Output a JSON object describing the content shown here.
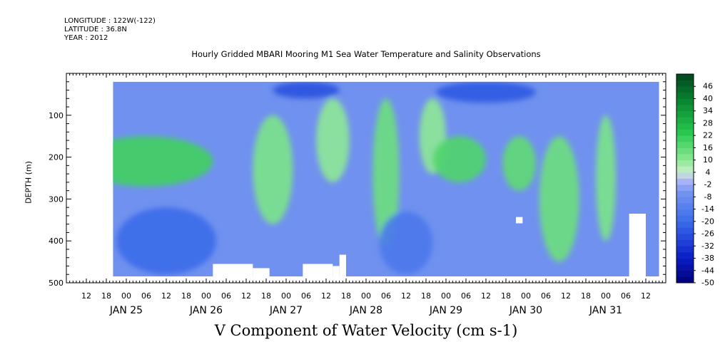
{
  "header": {
    "longitude": "LONGITUDE : 122W(-122)",
    "latitude": "LATITUDE : 36.8N",
    "year": "YEAR : 2012",
    "title": "Hourly Gridded MBARI Mooring M1 Sea Water Temperature and Salinity Observations"
  },
  "chart_data": {
    "type": "heatmap",
    "title": "Hourly Gridded MBARI Mooring M1 Sea Water Temperature and Salinity Observations",
    "xlabel": "V Component of Water Velocity (cm s-1)",
    "ylabel": "DEPTH (m)",
    "x_axis": {
      "hour_ticks": [
        "12",
        "18",
        "00",
        "06",
        "12",
        "18",
        "00",
        "06",
        "12",
        "18",
        "00",
        "06",
        "12",
        "18",
        "00",
        "06",
        "12",
        "18",
        "00",
        "06",
        "12",
        "18",
        "00",
        "06",
        "12",
        "18",
        "00",
        "06",
        "12"
      ],
      "hour_tick_start": "2012-01-24T12:00",
      "hour_tick_step_hours": 6,
      "date_labels": [
        "JAN 25",
        "JAN 26",
        "JAN 27",
        "JAN 28",
        "JAN 29",
        "JAN 30",
        "JAN 31"
      ],
      "range": [
        "2012-01-24T06:00",
        "2012-01-31T18:00"
      ]
    },
    "y_axis": {
      "range": [
        0,
        500
      ],
      "reversed": true,
      "ticks": [
        100,
        200,
        300,
        400,
        500
      ]
    },
    "colorbar": {
      "labels": [
        "46",
        "40",
        "34",
        "28",
        "22",
        "16",
        "10",
        "4",
        "-2",
        "-8",
        "-14",
        "-20",
        "-26",
        "-32",
        "-38",
        "-44",
        "-50"
      ],
      "min": -50,
      "max": 52,
      "step": 3
    },
    "data_extent": {
      "time_start": "2012-01-24T20:00",
      "time_end": "2012-01-31T16:00",
      "depth_top": 20,
      "depth_bottom": 485
    },
    "features": [
      {
        "time": "2012-01-25T06:00",
        "time_span_hours": 40,
        "depth": [
          150,
          270
        ],
        "v": 20
      },
      {
        "time": "2012-01-26T20:00",
        "time_span_hours": 12,
        "depth": [
          100,
          360
        ],
        "v": 12
      },
      {
        "time": "2012-01-27T14:00",
        "time_span_hours": 10,
        "depth": [
          60,
          260
        ],
        "v": 10
      },
      {
        "time": "2012-01-28T06:00",
        "time_span_hours": 8,
        "depth": [
          60,
          420
        ],
        "v": 14
      },
      {
        "time": "2012-01-28T20:00",
        "time_span_hours": 8,
        "depth": [
          60,
          240
        ],
        "v": 10
      },
      {
        "time": "2012-01-29T04:00",
        "time_span_hours": 16,
        "depth": [
          150,
          260
        ],
        "v": 18
      },
      {
        "time": "2012-01-29T22:00",
        "time_span_hours": 10,
        "depth": [
          150,
          280
        ],
        "v": 16
      },
      {
        "time": "2012-01-30T10:00",
        "time_span_hours": 12,
        "depth": [
          150,
          450
        ],
        "v": 14
      },
      {
        "time": "2012-01-31T00:00",
        "time_span_hours": 6,
        "depth": [
          100,
          400
        ],
        "v": 12
      },
      {
        "time": "2012-01-25T12:00",
        "time_span_hours": 30,
        "depth": [
          320,
          480
        ],
        "v": -20
      },
      {
        "time": "2012-01-27T06:00",
        "time_span_hours": 20,
        "depth": [
          20,
          60
        ],
        "v": -26
      },
      {
        "time": "2012-01-29T12:00",
        "time_span_hours": 30,
        "depth": [
          20,
          70
        ],
        "v": -24
      },
      {
        "time": "2012-01-28T12:00",
        "time_span_hours": 16,
        "depth": [
          330,
          480
        ],
        "v": -16
      }
    ],
    "masks": [
      {
        "time_start": "2012-01-26T02:00",
        "time_end": "2012-01-26T14:00",
        "depth": [
          455,
          485
        ]
      },
      {
        "time_start": "2012-01-26T14:00",
        "time_end": "2012-01-26T19:00",
        "depth": [
          465,
          490
        ]
      },
      {
        "time_start": "2012-01-27T05:00",
        "time_end": "2012-01-27T14:00",
        "depth": [
          455,
          490
        ]
      },
      {
        "time_start": "2012-01-27T14:00",
        "time_end": "2012-01-27T16:00",
        "depth": [
          460,
          490
        ]
      },
      {
        "time_start": "2012-01-27T16:00",
        "time_end": "2012-01-27T18:00",
        "depth": [
          433,
          490
        ]
      },
      {
        "time_start": "2012-01-29T21:00",
        "time_end": "2012-01-29T23:00",
        "depth": [
          343,
          358
        ]
      },
      {
        "time_start": "2012-01-31T07:00",
        "time_end": "2012-01-31T12:00",
        "depth": [
          335,
          500
        ]
      }
    ],
    "grid": false,
    "legend": "colorbar right"
  }
}
